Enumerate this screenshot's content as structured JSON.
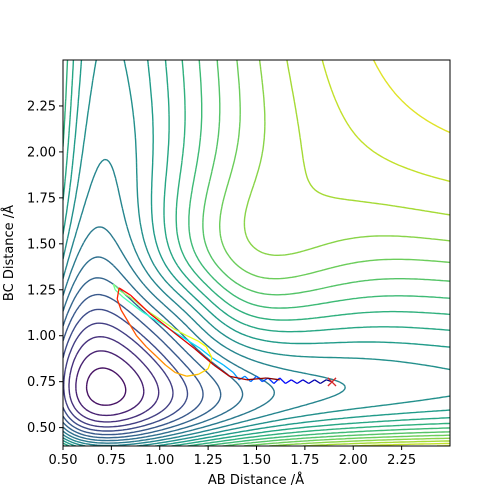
{
  "chart_data": {
    "type": "contour",
    "xlabel": "AB Distance /Å",
    "ylabel": "BC Distance /Å",
    "xlim": [
      0.5,
      2.5
    ],
    "ylim": [
      0.4,
      2.5
    ],
    "x_ticks": [
      "0.50",
      "0.75",
      "1.00",
      "1.25",
      "1.50",
      "1.75",
      "2.00",
      "2.25"
    ],
    "x_tick_values": [
      0.5,
      0.75,
      1.0,
      1.25,
      1.5,
      1.75,
      2.0,
      2.25
    ],
    "y_ticks": [
      "0.50",
      "0.75",
      "1.00",
      "1.25",
      "1.50",
      "1.75",
      "2.00",
      "2.25"
    ],
    "y_tick_values": [
      0.5,
      0.75,
      1.0,
      1.25,
      1.5,
      1.75,
      2.0,
      2.25
    ],
    "colormap": "viridis",
    "grid": false,
    "trajectory": {
      "colormap": "jet",
      "points": [
        [
          1.89,
          0.75
        ],
        [
          1.86,
          0.76
        ],
        [
          1.83,
          0.74
        ],
        [
          1.8,
          0.76
        ],
        [
          1.77,
          0.74
        ],
        [
          1.74,
          0.76
        ],
        [
          1.71,
          0.74
        ],
        [
          1.68,
          0.76
        ],
        [
          1.65,
          0.74
        ],
        [
          1.62,
          0.77
        ],
        [
          1.59,
          0.74
        ],
        [
          1.56,
          0.77
        ],
        [
          1.53,
          0.75
        ],
        [
          1.5,
          0.78
        ],
        [
          1.47,
          0.75
        ],
        [
          1.44,
          0.78
        ],
        [
          1.41,
          0.76
        ],
        [
          1.38,
          0.8
        ],
        [
          1.33,
          0.84
        ],
        [
          1.27,
          0.88
        ],
        [
          1.21,
          0.93
        ],
        [
          1.15,
          0.97
        ],
        [
          1.09,
          1.01
        ],
        [
          1.03,
          1.05
        ],
        [
          0.97,
          1.09
        ],
        [
          0.91,
          1.13
        ],
        [
          0.86,
          1.17
        ],
        [
          0.81,
          1.21
        ],
        [
          0.77,
          1.25
        ],
        [
          0.76,
          1.28
        ],
        [
          0.8,
          1.24
        ],
        [
          0.86,
          1.2
        ],
        [
          0.93,
          1.14
        ],
        [
          1.0,
          1.09
        ],
        [
          1.07,
          1.04
        ],
        [
          1.14,
          1.0
        ],
        [
          1.2,
          0.97
        ],
        [
          1.24,
          0.94
        ],
        [
          1.27,
          0.88
        ],
        [
          1.25,
          0.82
        ],
        [
          1.2,
          0.79
        ],
        [
          1.14,
          0.78
        ],
        [
          1.08,
          0.8
        ],
        [
          1.03,
          0.84
        ],
        [
          0.98,
          0.89
        ],
        [
          0.93,
          0.94
        ],
        [
          0.88,
          1.0
        ],
        [
          0.84,
          1.07
        ],
        [
          0.8,
          1.14
        ],
        [
          0.78,
          1.2
        ],
        [
          0.79,
          1.26
        ],
        [
          0.85,
          1.22
        ],
        [
          0.95,
          1.12
        ],
        [
          1.07,
          1.02
        ],
        [
          1.18,
          0.93
        ],
        [
          1.28,
          0.84
        ],
        [
          1.36,
          0.78
        ],
        [
          1.45,
          0.76
        ],
        [
          1.55,
          0.77
        ],
        [
          1.62,
          0.76
        ]
      ]
    },
    "end_marker": {
      "x": 1.89,
      "y": 0.75,
      "symbol": "×",
      "color": "#d62728"
    }
  }
}
